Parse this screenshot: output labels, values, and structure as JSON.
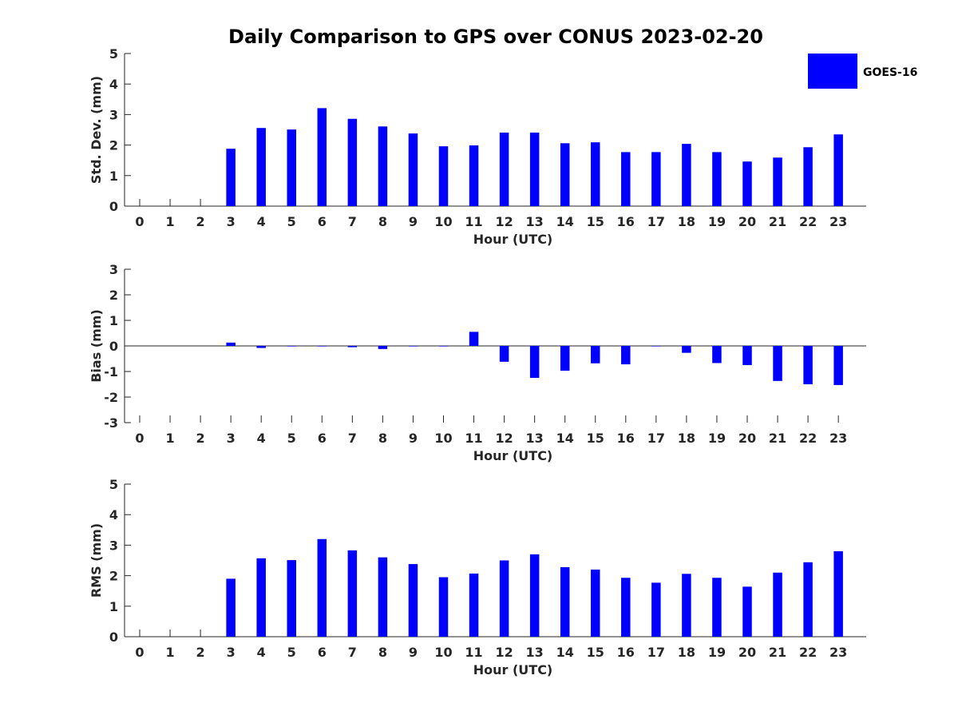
{
  "title": "Daily Comparison to GPS over CONUS 2023-02-20",
  "legend": {
    "label": "GOES-16",
    "color": "#0000ff"
  },
  "chart_data": [
    {
      "type": "bar",
      "id": "std",
      "title": "Daily Comparison to GPS over CONUS 2023-02-20",
      "xlabel": "Hour (UTC)",
      "ylabel": "Std. Dev. (mm)",
      "ylim": [
        0,
        5
      ],
      "yticks": [
        0,
        1,
        2,
        3,
        4,
        5
      ],
      "categories": [
        "0",
        "1",
        "2",
        "3",
        "4",
        "5",
        "6",
        "7",
        "8",
        "9",
        "10",
        "11",
        "12",
        "13",
        "14",
        "15",
        "16",
        "17",
        "18",
        "19",
        "20",
        "21",
        "22",
        "23"
      ],
      "series": [
        {
          "name": "GOES-16",
          "color": "#0000ff",
          "values": [
            null,
            null,
            null,
            1.88,
            2.56,
            2.51,
            3.21,
            2.86,
            2.61,
            2.38,
            1.96,
            1.99,
            2.41,
            2.41,
            2.06,
            2.09,
            1.77,
            1.77,
            2.04,
            1.77,
            1.46,
            1.59,
            1.93,
            2.35
          ]
        }
      ]
    },
    {
      "type": "bar",
      "id": "bias",
      "xlabel": "Hour (UTC)",
      "ylabel": "Bias (mm)",
      "ylim": [
        -3,
        3
      ],
      "yticks": [
        -3,
        -2,
        -1,
        0,
        1,
        2,
        3
      ],
      "categories": [
        "0",
        "1",
        "2",
        "3",
        "4",
        "5",
        "6",
        "7",
        "8",
        "9",
        "10",
        "11",
        "12",
        "13",
        "14",
        "15",
        "16",
        "17",
        "18",
        "19",
        "20",
        "21",
        "22",
        "23"
      ],
      "series": [
        {
          "name": "GOES-16",
          "color": "#0000ff",
          "values": [
            null,
            null,
            null,
            0.13,
            -0.08,
            -0.02,
            -0.02,
            -0.05,
            -0.12,
            -0.02,
            -0.02,
            0.55,
            -0.62,
            -1.25,
            -0.97,
            -0.68,
            -0.72,
            0.0,
            -0.27,
            -0.67,
            -0.75,
            -1.37,
            -1.5,
            -1.53
          ]
        }
      ]
    },
    {
      "type": "bar",
      "id": "rms",
      "xlabel": "Hour (UTC)",
      "ylabel": "RMS (mm)",
      "ylim": [
        0,
        5
      ],
      "yticks": [
        0,
        1,
        2,
        3,
        4,
        5
      ],
      "categories": [
        "0",
        "1",
        "2",
        "3",
        "4",
        "5",
        "6",
        "7",
        "8",
        "9",
        "10",
        "11",
        "12",
        "13",
        "14",
        "15",
        "16",
        "17",
        "18",
        "19",
        "20",
        "21",
        "22",
        "23"
      ],
      "series": [
        {
          "name": "GOES-16",
          "color": "#0000ff",
          "values": [
            null,
            null,
            null,
            1.9,
            2.57,
            2.51,
            3.2,
            2.83,
            2.6,
            2.38,
            1.95,
            2.07,
            2.5,
            2.7,
            2.28,
            2.2,
            1.93,
            1.77,
            2.06,
            1.93,
            1.64,
            2.1,
            2.44,
            2.8
          ]
        }
      ]
    }
  ]
}
